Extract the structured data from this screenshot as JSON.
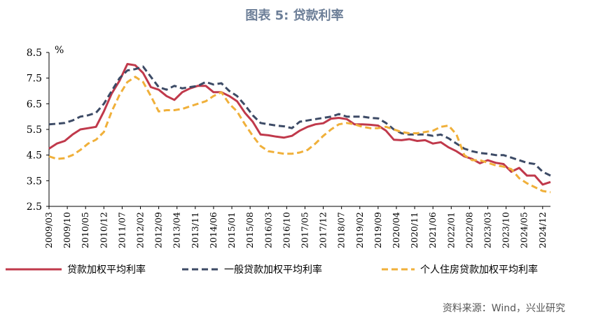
{
  "title": "图表 5:  贷款利率",
  "source": "资料来源：Wind，兴业研究",
  "chart_data": {
    "type": "line",
    "unit": "%",
    "ylim": [
      2.5,
      8.5
    ],
    "y_ticks": [
      "8.5",
      "7.5",
      "6.5",
      "5.5",
      "4.5",
      "3.5",
      "2.5"
    ],
    "x_tick_labels": [
      "2009/03",
      "2009/10",
      "2010/05",
      "2010/12",
      "2011/07",
      "2012/02",
      "2012/09",
      "2013/04",
      "2013/11",
      "2014/06",
      "2015/01",
      "2015/08",
      "2016/03",
      "2016/10",
      "2017/05",
      "2017/12",
      "2018/07",
      "2019/02",
      "2019/09",
      "2020/04",
      "2020/11",
      "2021/06",
      "2022/01",
      "2022/08",
      "2023/03",
      "2023/10",
      "2024/05",
      "2024/12"
    ],
    "grid": false,
    "legend_position": "bottom",
    "series": [
      {
        "name": "贷款加权平均利率",
        "color": "#c0394b",
        "style": "solid",
        "x": [
          "2009/03",
          "2009/06",
          "2009/09",
          "2009/12",
          "2010/03",
          "2010/06",
          "2010/09",
          "2010/12",
          "2011/03",
          "2011/06",
          "2011/09",
          "2011/12",
          "2012/03",
          "2012/06",
          "2012/09",
          "2012/12",
          "2013/03",
          "2013/06",
          "2013/09",
          "2013/12",
          "2014/03",
          "2014/06",
          "2014/09",
          "2014/12",
          "2015/03",
          "2015/06",
          "2015/09",
          "2015/12",
          "2016/03",
          "2016/06",
          "2016/09",
          "2016/12",
          "2017/03",
          "2017/06",
          "2017/09",
          "2017/12",
          "2018/03",
          "2018/06",
          "2018/09",
          "2018/12",
          "2019/03",
          "2019/06",
          "2019/09",
          "2019/12",
          "2020/03",
          "2020/06",
          "2020/09",
          "2020/12",
          "2021/03",
          "2021/06",
          "2021/09",
          "2021/12",
          "2022/03",
          "2022/06",
          "2022/09",
          "2022/12",
          "2023/03",
          "2023/06",
          "2023/09",
          "2023/12",
          "2024/03",
          "2024/06",
          "2024/09",
          "2024/12",
          "2025/03"
        ],
        "values": [
          4.75,
          4.95,
          5.05,
          5.3,
          5.5,
          5.55,
          5.6,
          6.2,
          6.9,
          7.4,
          8.05,
          8.0,
          7.7,
          7.15,
          7.05,
          6.8,
          6.65,
          6.95,
          7.1,
          7.2,
          7.2,
          6.95,
          6.95,
          6.8,
          6.6,
          6.15,
          5.8,
          5.3,
          5.27,
          5.22,
          5.18,
          5.25,
          5.45,
          5.6,
          5.7,
          5.74,
          5.92,
          5.95,
          5.9,
          5.7,
          5.7,
          5.68,
          5.65,
          5.45,
          5.1,
          5.08,
          5.12,
          5.05,
          5.08,
          4.95,
          5.0,
          4.8,
          4.65,
          4.45,
          4.35,
          4.18,
          4.3,
          4.2,
          4.15,
          3.85,
          4.0,
          3.7,
          3.7,
          3.35,
          3.45
        ]
      },
      {
        "name": "一般贷款加权平均利率",
        "color": "#3d4b66",
        "style": "dashed",
        "x": [
          "2009/03",
          "2009/06",
          "2009/09",
          "2009/12",
          "2010/03",
          "2010/06",
          "2010/09",
          "2010/12",
          "2011/03",
          "2011/06",
          "2011/09",
          "2011/12",
          "2012/03",
          "2012/06",
          "2012/09",
          "2012/12",
          "2013/03",
          "2013/06",
          "2013/09",
          "2013/12",
          "2014/03",
          "2014/06",
          "2014/09",
          "2014/12",
          "2015/03",
          "2015/06",
          "2015/09",
          "2015/12",
          "2016/03",
          "2016/06",
          "2016/09",
          "2016/12",
          "2017/03",
          "2017/06",
          "2017/09",
          "2017/12",
          "2018/03",
          "2018/06",
          "2018/09",
          "2018/12",
          "2019/03",
          "2019/06",
          "2019/09",
          "2019/12",
          "2020/03",
          "2020/06",
          "2020/09",
          "2020/12",
          "2021/03",
          "2021/06",
          "2021/09",
          "2021/12",
          "2022/03",
          "2022/06",
          "2022/09",
          "2022/12",
          "2023/03",
          "2023/06",
          "2023/09",
          "2023/12",
          "2024/03",
          "2024/06",
          "2024/09",
          "2024/12",
          "2025/03"
        ],
        "values": [
          5.7,
          5.72,
          5.75,
          5.85,
          6.0,
          6.05,
          6.15,
          6.5,
          7.0,
          7.5,
          7.8,
          7.85,
          7.95,
          7.55,
          7.15,
          7.05,
          7.2,
          7.1,
          7.15,
          7.2,
          7.35,
          7.25,
          7.3,
          7.0,
          6.8,
          6.45,
          6.05,
          5.75,
          5.7,
          5.65,
          5.62,
          5.55,
          5.8,
          5.85,
          5.9,
          5.95,
          6.0,
          6.1,
          6.0,
          6.0,
          6.0,
          5.95,
          5.93,
          5.75,
          5.5,
          5.35,
          5.3,
          5.3,
          5.3,
          5.25,
          5.3,
          5.15,
          4.95,
          4.75,
          4.65,
          4.58,
          4.55,
          4.5,
          4.5,
          4.4,
          4.3,
          4.2,
          4.15,
          3.85,
          3.7
        ]
      },
      {
        "name": "个人住房贷款加权平均利率",
        "color": "#f0b03a",
        "style": "dashed",
        "x": [
          "2009/03",
          "2009/06",
          "2009/09",
          "2009/12",
          "2010/03",
          "2010/06",
          "2010/09",
          "2010/12",
          "2011/03",
          "2011/06",
          "2011/09",
          "2011/12",
          "2012/03",
          "2012/06",
          "2012/09",
          "2012/12",
          "2013/03",
          "2013/06",
          "2013/09",
          "2013/12",
          "2014/03",
          "2014/06",
          "2014/09",
          "2014/12",
          "2015/03",
          "2015/06",
          "2015/09",
          "2015/12",
          "2016/03",
          "2016/06",
          "2016/09",
          "2016/12",
          "2017/03",
          "2017/06",
          "2017/09",
          "2017/12",
          "2018/03",
          "2018/06",
          "2018/09",
          "2018/12",
          "2019/03",
          "2019/06",
          "2019/09",
          "2019/12",
          "2020/03",
          "2020/06",
          "2020/09",
          "2020/12",
          "2021/03",
          "2021/06",
          "2021/09",
          "2021/12",
          "2022/03",
          "2022/06",
          "2022/09",
          "2022/12",
          "2023/03",
          "2023/06",
          "2023/09",
          "2023/12",
          "2024/03",
          "2024/06",
          "2024/09",
          "2024/12",
          "2025/03"
        ],
        "values": [
          4.45,
          4.35,
          4.38,
          4.5,
          4.7,
          4.95,
          5.1,
          5.4,
          6.2,
          6.85,
          7.35,
          7.55,
          7.35,
          6.8,
          6.2,
          6.25,
          6.25,
          6.3,
          6.4,
          6.5,
          6.6,
          6.8,
          6.95,
          6.5,
          6.2,
          5.7,
          5.25,
          4.85,
          4.65,
          4.6,
          4.55,
          4.55,
          4.6,
          4.7,
          4.95,
          5.25,
          5.5,
          5.7,
          5.75,
          5.7,
          5.6,
          5.55,
          5.55,
          5.6,
          5.5,
          5.4,
          5.35,
          5.35,
          5.4,
          5.45,
          5.6,
          5.65,
          5.3,
          4.5,
          4.3,
          4.3,
          4.2,
          4.1,
          4.05,
          3.95,
          3.6,
          3.4,
          3.25,
          3.1,
          3.05
        ]
      }
    ]
  }
}
